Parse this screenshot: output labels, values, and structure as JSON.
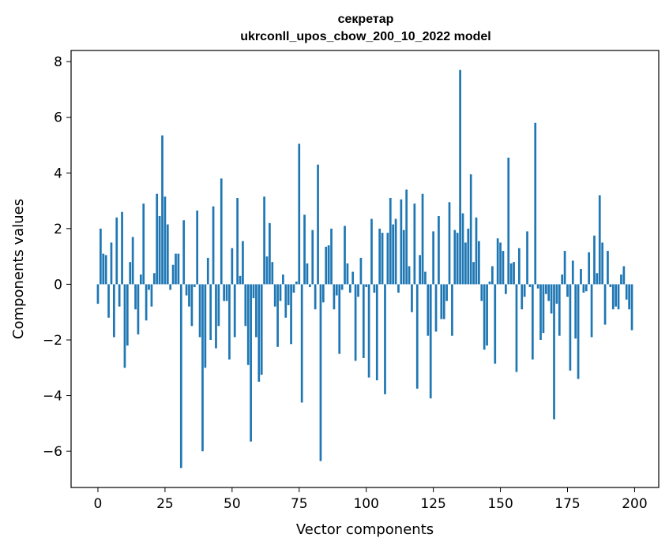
{
  "chart_data": {
    "type": "bar",
    "title": "секретар",
    "subtitle": "ukrconll_upos_cbow_200_10_2022 model",
    "xlabel": "Vector components",
    "ylabel": "Components values",
    "xlim": [
      -10,
      209
    ],
    "ylim": [
      -7.3,
      8.4
    ],
    "x_ticks": [
      0,
      25,
      50,
      75,
      100,
      125,
      150,
      175,
      200
    ],
    "y_ticks": [
      -6,
      -4,
      -2,
      0,
      2,
      4,
      6,
      8
    ],
    "y_tick_labels": [
      "−6",
      "−4",
      "−2",
      "0",
      "2",
      "4",
      "6",
      "8"
    ],
    "bar_color": "#1f77b4",
    "grid": false,
    "values": [
      -0.7,
      2.0,
      1.1,
      1.05,
      -1.2,
      1.5,
      -1.9,
      2.4,
      -0.8,
      2.6,
      -3.0,
      -2.2,
      0.8,
      1.7,
      -0.9,
      -1.8,
      0.35,
      2.9,
      -1.3,
      -0.2,
      -0.8,
      0.4,
      3.25,
      2.45,
      5.35,
      3.15,
      2.15,
      -0.2,
      0.7,
      1.1,
      1.1,
      -6.6,
      2.3,
      -0.4,
      -0.8,
      -1.5,
      -0.1,
      2.65,
      -1.9,
      -6.0,
      -3.0,
      0.95,
      -2.0,
      2.8,
      -2.3,
      -1.5,
      3.8,
      -0.6,
      -0.6,
      -2.7,
      1.3,
      -1.9,
      3.1,
      0.3,
      1.55,
      -1.5,
      -2.9,
      -5.65,
      -0.5,
      -1.9,
      -3.5,
      -3.25,
      3.15,
      1.0,
      2.2,
      0.8,
      -0.8,
      -2.25,
      -0.6,
      0.35,
      -1.2,
      -0.75,
      -2.15,
      -0.3,
      0.1,
      5.05,
      -4.25,
      2.5,
      0.75,
      -0.1,
      1.95,
      -0.9,
      4.3,
      -6.35,
      -0.65,
      1.35,
      1.4,
      2.0,
      -0.9,
      -0.4,
      -2.5,
      -0.2,
      2.1,
      0.75,
      -0.3,
      0.45,
      -2.75,
      -0.45,
      0.95,
      -2.65,
      -0.1,
      -3.35,
      2.35,
      -0.3,
      -3.45,
      2.0,
      1.85,
      -3.95,
      1.85,
      3.1,
      2.15,
      2.35,
      -0.3,
      3.05,
      1.95,
      3.4,
      0.65,
      -1.0,
      2.9,
      -3.75,
      1.05,
      3.25,
      0.45,
      -1.85,
      -4.1,
      1.9,
      -1.7,
      2.45,
      -1.25,
      -1.25,
      -0.6,
      2.95,
      -1.85,
      1.95,
      1.85,
      7.7,
      2.55,
      1.5,
      2.0,
      3.95,
      0.8,
      2.4,
      1.55,
      -0.6,
      -2.35,
      -2.2,
      0.1,
      0.65,
      -2.85,
      1.65,
      1.5,
      1.2,
      -0.35,
      4.55,
      0.75,
      0.8,
      -3.15,
      1.3,
      -0.9,
      -0.45,
      1.9,
      -0.1,
      -2.7,
      5.8,
      -0.15,
      -2.0,
      -1.75,
      -0.35,
      -0.6,
      -1.05,
      -4.85,
      -0.7,
      -1.85,
      0.35,
      1.2,
      -0.45,
      -3.1,
      0.85,
      -1.95,
      -3.4,
      0.55,
      -0.3,
      -0.25,
      1.15,
      -1.9,
      1.75,
      0.4,
      3.2,
      1.5,
      -1.45,
      1.2,
      -0.1,
      -0.9,
      -0.8,
      -0.9,
      0.35,
      0.65,
      -0.55,
      -0.9,
      -1.65
    ]
  }
}
